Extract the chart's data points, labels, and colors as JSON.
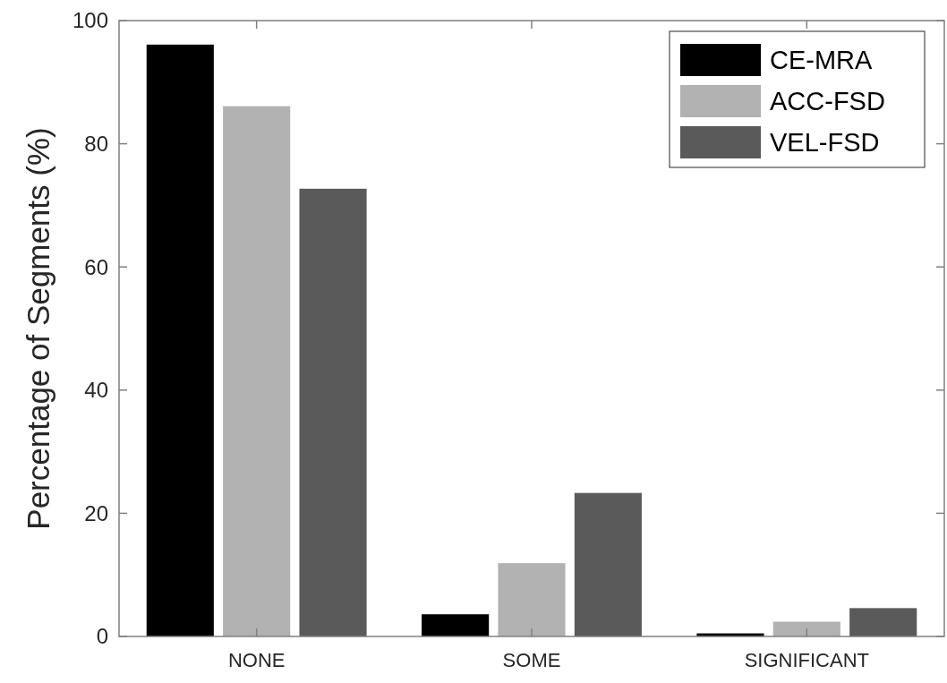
{
  "chart_data": {
    "type": "bar",
    "ylabel": "Percentage of Segments (%)",
    "categories": [
      "NONE",
      "SOME",
      "SIGNIFICANT"
    ],
    "series": [
      {
        "name": "CE-MRA",
        "color": "#000000",
        "values": [
          96.1,
          3.6,
          0.5
        ]
      },
      {
        "name": "ACC-FSD",
        "color": "#b2b2b2",
        "values": [
          86.1,
          11.9,
          2.4
        ]
      },
      {
        "name": "VEL-FSD",
        "color": "#5a5a5a",
        "values": [
          72.7,
          23.3,
          4.6
        ]
      }
    ],
    "ylim": [
      0,
      100
    ],
    "yticks": [
      0,
      20,
      40,
      60,
      80,
      100
    ],
    "legend": "top right",
    "grid": false
  }
}
